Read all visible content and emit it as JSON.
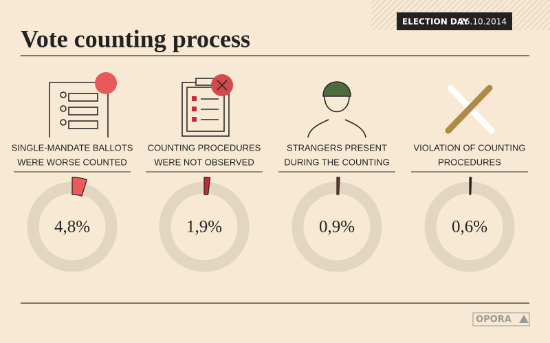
{
  "header": {
    "badge_bold": "ELECTION DAY",
    "badge_date": "26.10.2014"
  },
  "chart_data": {
    "type": "donut",
    "title": "Vote counting process",
    "categories": [
      [
        "SINGLE-MANDATE BALLOTS",
        "WERE WORSE COUNTED"
      ],
      [
        "COUNTING PROCEDURES",
        "WERE NOT OBSERVED"
      ],
      [
        "STRANGERS PRESENT",
        "DURING THE COUNTING"
      ],
      [
        "VIOLATION OF COUNTING",
        "PROCEDURES"
      ]
    ],
    "values": [
      4.8,
      1.9,
      0.9,
      0.6
    ],
    "value_labels": [
      "4,8%",
      "1,9%",
      "0,9%",
      "0,6%"
    ],
    "colors": [
      "#ec5a5c",
      "#c8283a",
      "#6e3a2a",
      "#2a1f1a"
    ],
    "ring_color": "#e2d5c1"
  },
  "footer": {
    "logo": "OPORA"
  }
}
